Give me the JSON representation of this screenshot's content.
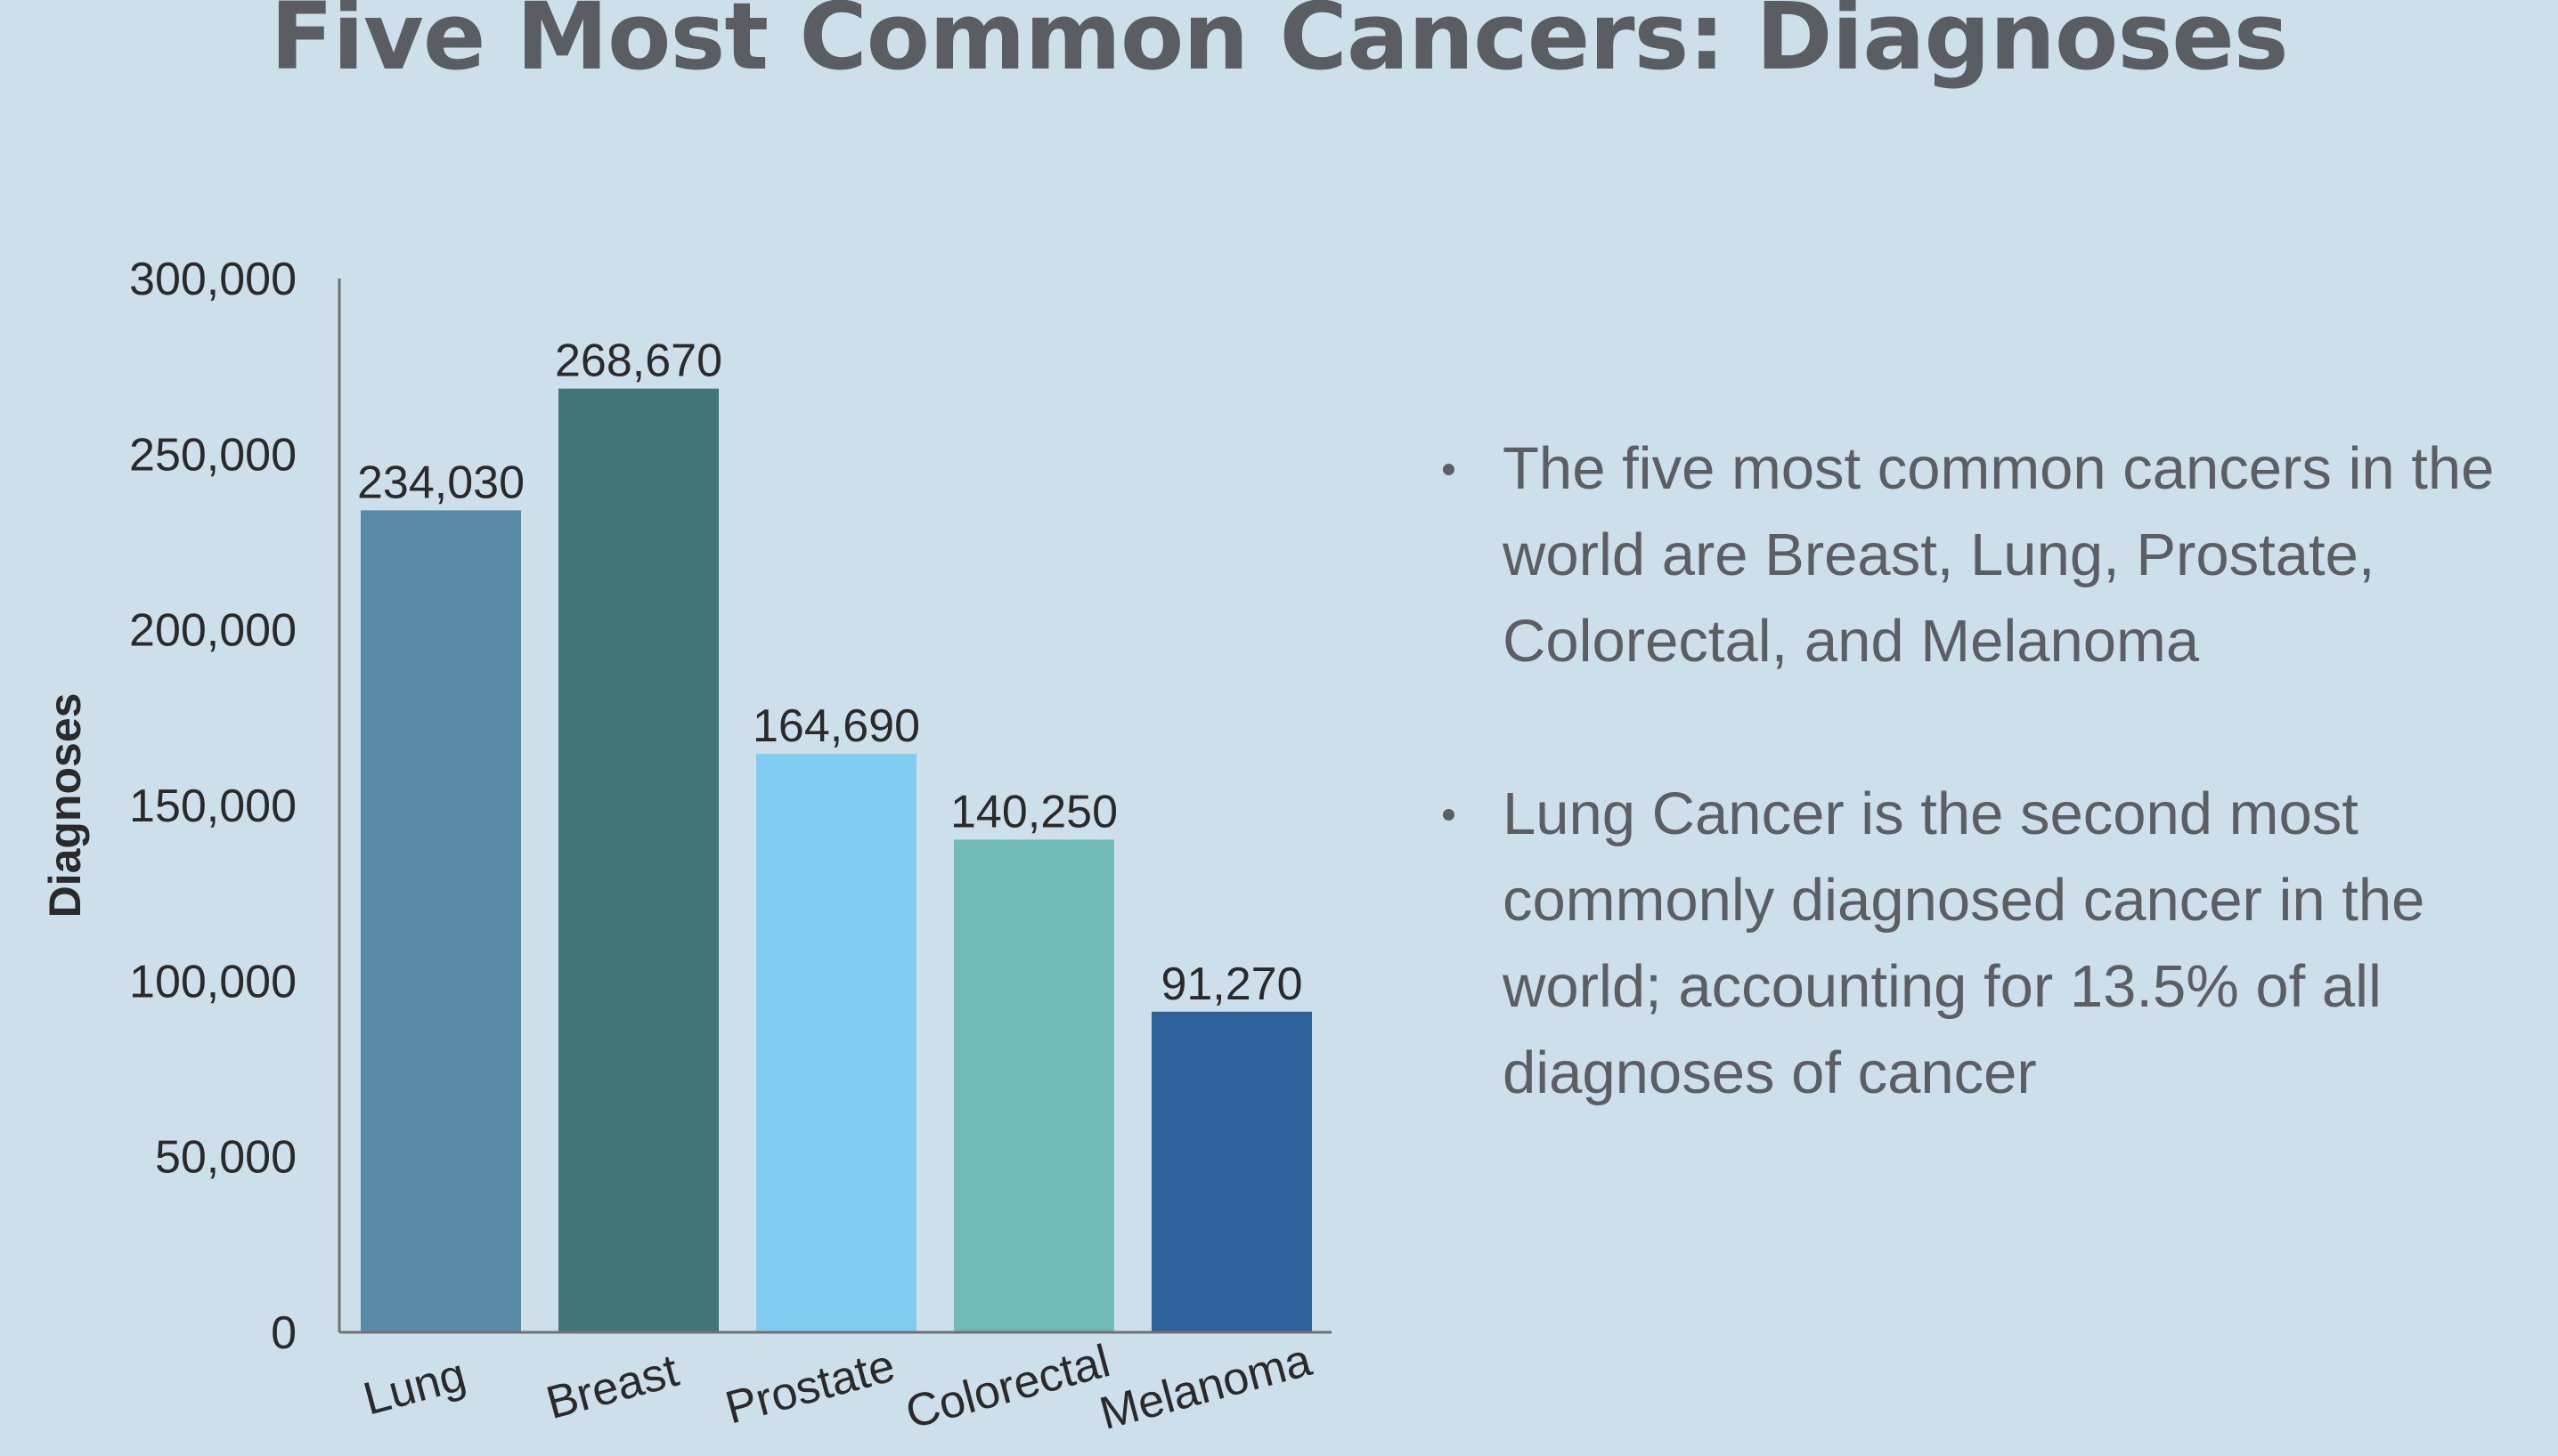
{
  "title": "Five Most Common Cancers: Diagnoses",
  "bullets": [
    "The five most common cancers in the world are Breast, Lung, Prostate, Colorectal, and Melanoma",
    "Lung Cancer is the second most commonly diagnosed cancer in the world; accounting for 13.5% of all diagnoses of cancer"
  ],
  "chart_data": {
    "type": "bar",
    "title": "",
    "xlabel": "",
    "ylabel": "Diagnoses",
    "categories": [
      "Lung",
      "Breast",
      "Prostate",
      "Colorectal",
      "Melanoma"
    ],
    "values": [
      234030,
      268670,
      164690,
      140250,
      91270
    ],
    "data_labels": [
      "234,030",
      "268,670",
      "164,690",
      "140,250",
      "91,270"
    ],
    "bar_colors": [
      "#5a8ba6",
      "#417576",
      "#80cdf1",
      "#70bbb8",
      "#2f629a"
    ],
    "ylim": [
      0,
      300000
    ],
    "yticks": [
      0,
      50000,
      100000,
      150000,
      200000,
      250000,
      300000
    ],
    "ytick_labels": [
      "0",
      "50,000",
      "100,000",
      "150,000",
      "200,000",
      "250,000",
      "300,000"
    ],
    "grid": false,
    "legend": "none"
  }
}
